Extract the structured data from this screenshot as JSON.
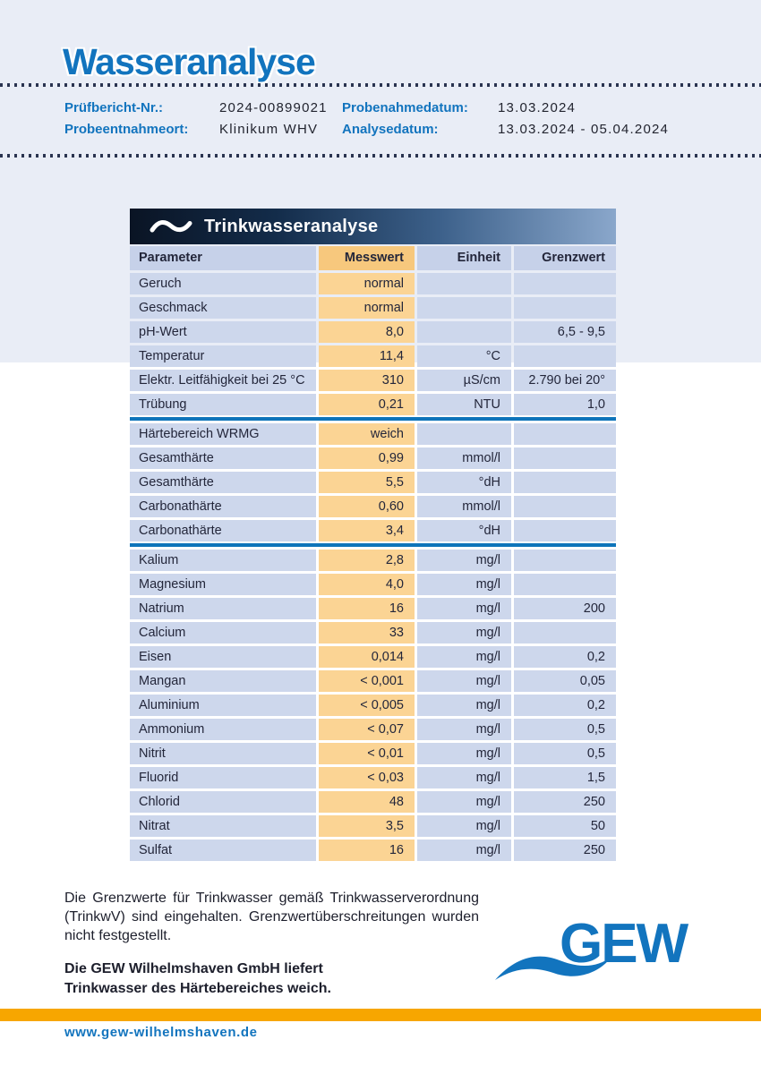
{
  "header": {
    "title": "Wasseranalyse",
    "info_rows": [
      {
        "label1": "Prüfbericht-Nr.:",
        "value1": "2024-00899021",
        "label2": "Probenahmedatum:",
        "value2": "13.03.2024"
      },
      {
        "label1": "Probeentnahmeort:",
        "value1": "Klinikum WHV",
        "label2": "Analysedatum:",
        "value2": "13.03.2024 - 05.04.2024"
      }
    ]
  },
  "table": {
    "title": "Trinkwasseranalyse",
    "columns": {
      "parameter": "Parameter",
      "messwert": "Messwert",
      "einheit": "Einheit",
      "grenzwert": "Grenzwert"
    },
    "rows": [
      {
        "parameter": "Geruch",
        "messwert": "normal",
        "einheit": "",
        "grenzwert": ""
      },
      {
        "parameter": "Geschmack",
        "messwert": "normal",
        "einheit": "",
        "grenzwert": ""
      },
      {
        "parameter": "pH-Wert",
        "messwert": "8,0",
        "einheit": "",
        "grenzwert": "6,5 - 9,5"
      },
      {
        "parameter": "Temperatur",
        "messwert": "11,4",
        "einheit": "°C",
        "grenzwert": ""
      },
      {
        "parameter": "Elektr. Leitfähigkeit bei 25 °C",
        "messwert": "310",
        "einheit": "µS/cm",
        "grenzwert": "2.790 bei 20°"
      },
      {
        "parameter": "Trübung",
        "messwert": "0,21",
        "einheit": "NTU",
        "grenzwert": "1,0"
      },
      {
        "type": "divider"
      },
      {
        "parameter": "Härtebereich WRMG",
        "messwert": "weich",
        "einheit": "",
        "grenzwert": ""
      },
      {
        "parameter": "Gesamthärte",
        "messwert": "0,99",
        "einheit": "mmol/l",
        "grenzwert": ""
      },
      {
        "parameter": "Gesamthärte",
        "messwert": "5,5",
        "einheit": "°dH",
        "grenzwert": ""
      },
      {
        "parameter": "Carbonathärte",
        "messwert": "0,60",
        "einheit": "mmol/l",
        "grenzwert": ""
      },
      {
        "parameter": "Carbonathärte",
        "messwert": "3,4",
        "einheit": "°dH",
        "grenzwert": ""
      },
      {
        "type": "divider"
      },
      {
        "parameter": "Kalium",
        "messwert": "2,8",
        "einheit": "mg/l",
        "grenzwert": ""
      },
      {
        "parameter": "Magnesium",
        "messwert": "4,0",
        "einheit": "mg/l",
        "grenzwert": ""
      },
      {
        "parameter": "Natrium",
        "messwert": "16",
        "einheit": "mg/l",
        "grenzwert": "200"
      },
      {
        "parameter": "Calcium",
        "messwert": "33",
        "einheit": "mg/l",
        "grenzwert": ""
      },
      {
        "parameter": "Eisen",
        "messwert": "0,014",
        "einheit": "mg/l",
        "grenzwert": "0,2"
      },
      {
        "parameter": "Mangan",
        "messwert": "< 0,001",
        "einheit": "mg/l",
        "grenzwert": "0,05"
      },
      {
        "parameter": "Aluminium",
        "messwert": "< 0,005",
        "einheit": "mg/l",
        "grenzwert": "0,2"
      },
      {
        "parameter": "Ammonium",
        "messwert": "< 0,07",
        "einheit": "mg/l",
        "grenzwert": "0,5"
      },
      {
        "parameter": "Nitrit",
        "messwert": "< 0,01",
        "einheit": "mg/l",
        "grenzwert": "0,5"
      },
      {
        "parameter": "Fluorid",
        "messwert": "< 0,03",
        "einheit": "mg/l",
        "grenzwert": "1,5"
      },
      {
        "parameter": "Chlorid",
        "messwert": "48",
        "einheit": "mg/l",
        "grenzwert": "250"
      },
      {
        "parameter": "Nitrat",
        "messwert": "3,5",
        "einheit": "mg/l",
        "grenzwert": "50"
      },
      {
        "parameter": "Sulfat",
        "messwert": "16",
        "einheit": "mg/l",
        "grenzwert": "250"
      }
    ]
  },
  "footer": {
    "paragraph": "Die Grenzwerte für Trinkwasser gemäß Trinkwasserverordnung (TrinkwV) sind eingehalten. Grenzwertüberschreitungen wurden nicht festgestellt.",
    "bold_line1": "Die GEW Wilhelmshaven GmbH liefert",
    "bold_line2": "Trinkwasser des Härtebereiches weich.",
    "logo_text": "GEW",
    "website": "www.gew-wilhelmshaven.de"
  },
  "colors": {
    "accent_blue": "#1274be",
    "header_background": "#e9edf6",
    "row_blue": "#cdd7ec",
    "row_orange": "#fbd494",
    "header_orange": "#f7c87d",
    "divider_blue": "#0e74ba",
    "bottom_bar_orange": "#f7a600",
    "band_gradient_start": "#0a1424",
    "band_gradient_end": "#8aa7cb",
    "dotted_line": "#2a3450"
  }
}
